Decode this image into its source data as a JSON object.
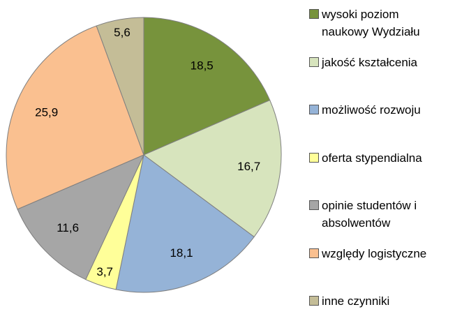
{
  "chart_data": {
    "type": "pie",
    "categories": [
      "wysoki poziom naukowy Wydziału",
      "jakość kształcenia",
      "możliwość rozwoju",
      "oferta stypendialna",
      "opinie studentów i absolwentów",
      "względy logistyczne",
      "inne czynniki"
    ],
    "values": [
      18.5,
      16.7,
      18.1,
      3.7,
      11.6,
      25.9,
      5.6
    ],
    "value_labels": [
      "18,5",
      "16,7",
      "18,1",
      "3,7",
      "11,6",
      "25,9",
      "5,6"
    ],
    "colors": [
      "#77933c",
      "#d7e4bd",
      "#95b3d7",
      "#ffff99",
      "#a6a6a6",
      "#fac090",
      "#c4bd97"
    ],
    "legend": "right"
  }
}
